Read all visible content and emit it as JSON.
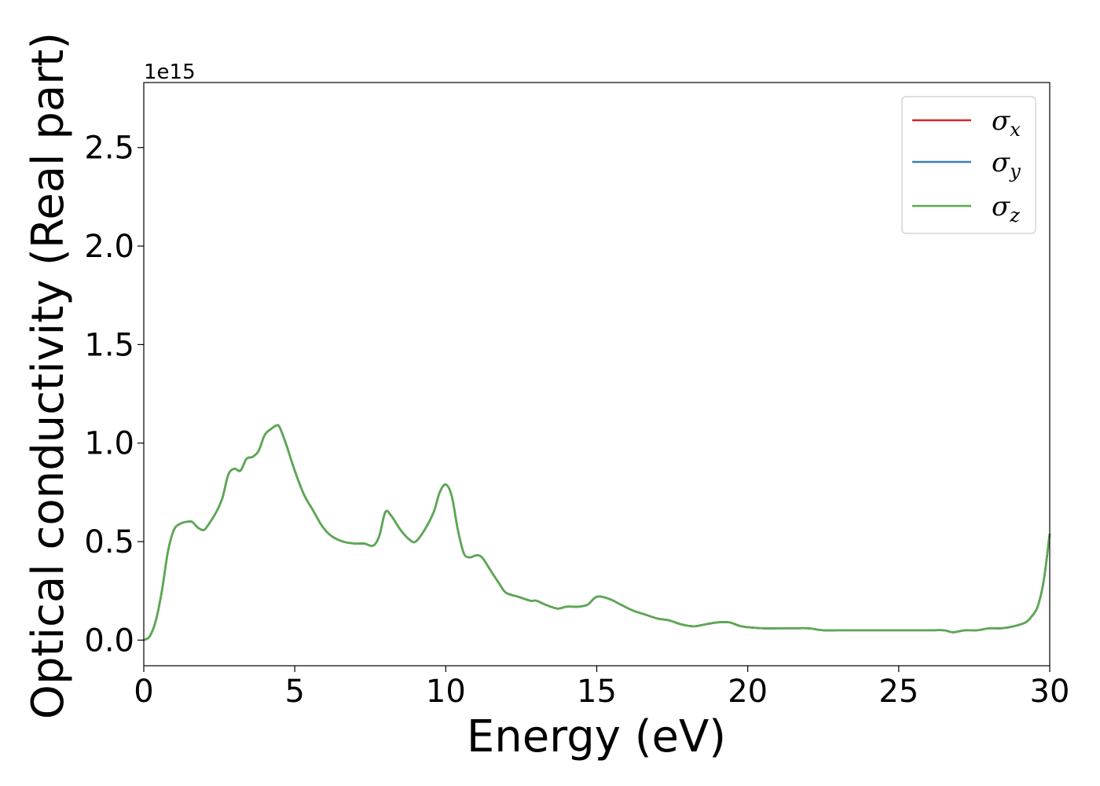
{
  "chart_data": {
    "type": "line",
    "xlabel": "Energy (eV)",
    "ylabel": "Optical conductivity (Real part)",
    "y_offset_label": "1e15",
    "y_scale": 1000000000000000.0,
    "xlim": [
      0,
      30
    ],
    "ylim": [
      -0.13,
      2.83
    ],
    "xticks": [
      0,
      5,
      10,
      15,
      20,
      25,
      30
    ],
    "xtick_labels": [
      "0",
      "5",
      "10",
      "15",
      "20",
      "25",
      "30"
    ],
    "yticks": [
      0.0,
      0.5,
      1.0,
      1.5,
      2.0,
      2.5
    ],
    "ytick_labels": [
      "0.0",
      "0.5",
      "1.0",
      "1.5",
      "2.0",
      "2.5"
    ],
    "grid": false,
    "legend_position": "top-right",
    "series": [
      {
        "name": "σx",
        "symbol": "σ",
        "subscript": "x",
        "color": "#d62728"
      },
      {
        "name": "σy",
        "symbol": "σ",
        "subscript": "y",
        "color": "#3a7fb8"
      },
      {
        "name": "σz",
        "symbol": "σ",
        "subscript": "z",
        "color": "#5aaa4f"
      }
    ],
    "x": [
      0,
      0.2,
      0.4,
      0.6,
      0.8,
      1.0,
      1.2,
      1.4,
      1.6,
      1.8,
      2.0,
      2.2,
      2.4,
      2.6,
      2.8,
      3.0,
      3.2,
      3.4,
      3.6,
      3.8,
      4.0,
      4.2,
      4.4,
      4.5,
      4.7,
      5.0,
      5.3,
      5.6,
      5.9,
      6.2,
      6.6,
      7.0,
      7.3,
      7.6,
      7.8,
      8.0,
      8.2,
      8.5,
      8.8,
      9.0,
      9.3,
      9.6,
      9.8,
      10.0,
      10.2,
      10.4,
      10.6,
      10.8,
      11.0,
      11.2,
      11.5,
      11.8,
      12.0,
      12.4,
      12.8,
      13.0,
      13.3,
      13.7,
      14.0,
      14.4,
      14.7,
      15.0,
      15.4,
      15.8,
      16.2,
      16.6,
      17.0,
      17.4,
      17.8,
      18.2,
      18.6,
      19.0,
      19.4,
      19.8,
      20.5,
      21.0,
      21.5,
      22.0,
      22.5,
      23.0,
      23.5,
      24.0,
      24.5,
      25.0,
      25.5,
      26.0,
      26.5,
      26.8,
      27.2,
      27.6,
      28.0,
      28.4,
      28.8,
      29.2,
      29.4,
      29.6,
      29.8,
      30.0
    ],
    "y": [
      0.0,
      0.02,
      0.1,
      0.25,
      0.45,
      0.56,
      0.59,
      0.6,
      0.6,
      0.57,
      0.56,
      0.6,
      0.65,
      0.72,
      0.84,
      0.87,
      0.86,
      0.92,
      0.93,
      0.96,
      1.04,
      1.07,
      1.09,
      1.08,
      1.0,
      0.86,
      0.74,
      0.66,
      0.58,
      0.53,
      0.5,
      0.49,
      0.49,
      0.48,
      0.53,
      0.65,
      0.63,
      0.56,
      0.51,
      0.5,
      0.56,
      0.65,
      0.75,
      0.79,
      0.73,
      0.56,
      0.44,
      0.42,
      0.43,
      0.42,
      0.35,
      0.28,
      0.24,
      0.22,
      0.2,
      0.2,
      0.18,
      0.16,
      0.17,
      0.17,
      0.18,
      0.22,
      0.21,
      0.18,
      0.15,
      0.13,
      0.11,
      0.1,
      0.08,
      0.07,
      0.08,
      0.09,
      0.09,
      0.07,
      0.06,
      0.06,
      0.06,
      0.06,
      0.05,
      0.05,
      0.05,
      0.05,
      0.05,
      0.05,
      0.05,
      0.05,
      0.05,
      0.04,
      0.05,
      0.05,
      0.06,
      0.06,
      0.07,
      0.09,
      0.12,
      0.17,
      0.3,
      0.54
    ]
  }
}
